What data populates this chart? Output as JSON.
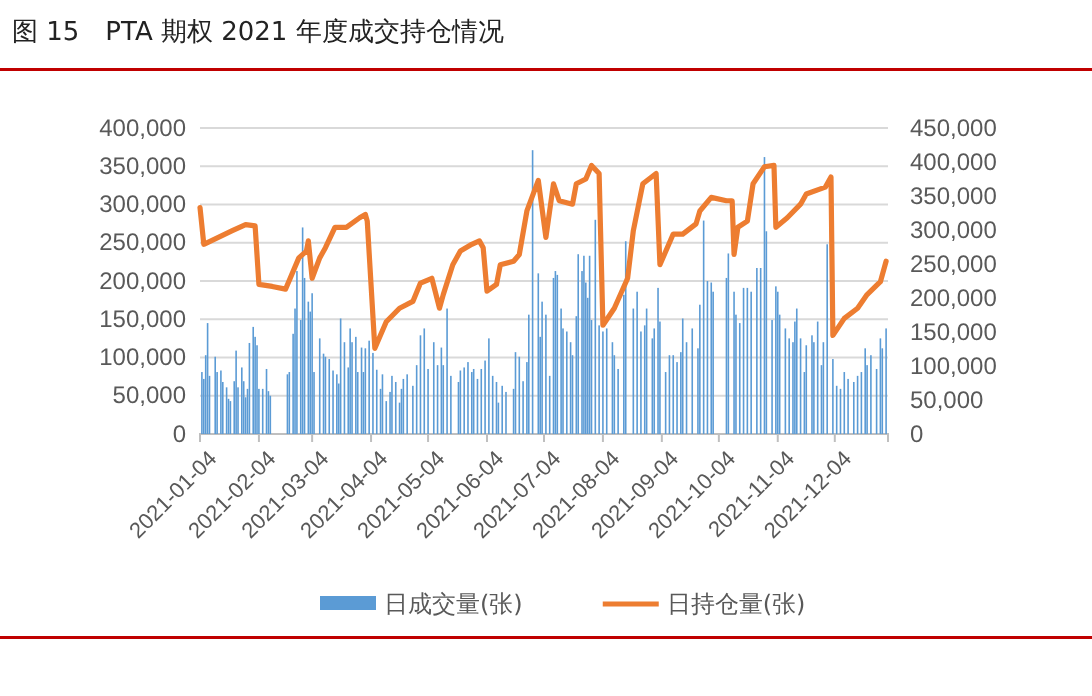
{
  "chart_data": {
    "type": "bar",
    "title": "图 15　PTA 期权 2021 年度成交持仓情况",
    "xlim": [
      "2021-01-04",
      "2022-01-01"
    ],
    "xticks": [
      "2021-01-04",
      "2021-02-04",
      "2021-03-04",
      "2021-04-04",
      "2021-05-04",
      "2021-06-04",
      "2021-07-04",
      "2021-08-04",
      "2021-09-04",
      "2021-10-04",
      "2021-11-04",
      "2021-12-04"
    ],
    "ylim": [
      0,
      400000
    ],
    "yticks": [
      {
        "value": 0,
        "label": "0"
      },
      {
        "value": 50000,
        "label": "50,000"
      },
      {
        "value": 100000,
        "label": "100,000"
      },
      {
        "value": 150000,
        "label": "150,000"
      },
      {
        "value": 200000,
        "label": "200,000"
      },
      {
        "value": 250000,
        "label": "250,000"
      },
      {
        "value": 300000,
        "label": "300,000"
      },
      {
        "value": 350000,
        "label": "350,000"
      },
      {
        "value": 400000,
        "label": "400,000"
      }
    ],
    "y2lim": [
      0,
      450000
    ],
    "y2ticks": [
      {
        "value": 0,
        "label": "0"
      },
      {
        "value": 50000,
        "label": "50,000"
      },
      {
        "value": 100000,
        "label": "100,000"
      },
      {
        "value": 150000,
        "label": "150,000"
      },
      {
        "value": 200000,
        "label": "200,000"
      },
      {
        "value": 250000,
        "label": "250,000"
      },
      {
        "value": 300000,
        "label": "300,000"
      },
      {
        "value": 350000,
        "label": "350,000"
      },
      {
        "value": 400000,
        "label": "400,000"
      },
      {
        "value": 450000,
        "label": "450,000"
      }
    ],
    "grid": "y",
    "legend": "bottom",
    "series": [
      {
        "name": "日成交量(张)",
        "color": "#5b9bd5",
        "x": [
          "2021-01-05",
          "2021-01-06",
          "2021-01-07",
          "2021-01-08",
          "2021-01-09",
          "2021-01-12",
          "2021-01-13",
          "2021-01-15",
          "2021-01-16",
          "2021-01-18",
          "2021-01-19",
          "2021-01-20",
          "2021-01-22",
          "2021-01-23",
          "2021-01-24",
          "2021-01-26",
          "2021-01-27",
          "2021-01-28",
          "2021-01-29",
          "2021-01-30",
          "2021-02-01",
          "2021-02-02",
          "2021-02-03",
          "2021-02-04",
          "2021-02-06",
          "2021-02-08",
          "2021-02-09",
          "2021-02-10",
          "2021-02-19",
          "2021-02-20",
          "2021-02-22",
          "2021-02-23",
          "2021-02-24",
          "2021-02-26",
          "2021-02-27",
          "2021-02-28",
          "2021-03-02",
          "2021-03-03",
          "2021-03-04",
          "2021-03-05",
          "2021-03-08",
          "2021-03-10",
          "2021-03-11",
          "2021-03-13",
          "2021-03-15",
          "2021-03-17",
          "2021-03-18",
          "2021-03-19",
          "2021-03-21",
          "2021-03-23",
          "2021-03-24",
          "2021-03-25",
          "2021-03-27",
          "2021-03-28",
          "2021-03-30",
          "2021-03-31",
          "2021-04-01",
          "2021-04-03",
          "2021-04-05",
          "2021-04-07",
          "2021-04-09",
          "2021-04-10",
          "2021-04-12",
          "2021-04-14",
          "2021-04-15",
          "2021-04-17",
          "2021-04-19",
          "2021-04-20",
          "2021-04-21",
          "2021-04-23",
          "2021-04-26",
          "2021-04-28",
          "2021-04-30",
          "2021-05-02",
          "2021-05-04",
          "2021-05-07",
          "2021-05-09",
          "2021-05-11",
          "2021-05-12",
          "2021-05-14",
          "2021-05-16",
          "2021-05-20",
          "2021-05-21",
          "2021-05-23",
          "2021-05-25",
          "2021-05-27",
          "2021-05-28",
          "2021-05-30",
          "2021-06-01",
          "2021-06-03",
          "2021-06-05",
          "2021-06-07",
          "2021-06-09",
          "2021-06-10",
          "2021-06-12",
          "2021-06-14",
          "2021-06-18",
          "2021-06-19",
          "2021-06-21",
          "2021-06-23",
          "2021-06-25",
          "2021-06-26",
          "2021-06-28",
          "2021-07-01",
          "2021-07-02",
          "2021-07-03",
          "2021-07-05",
          "2021-07-07",
          "2021-07-09",
          "2021-07-10",
          "2021-07-11",
          "2021-07-13",
          "2021-07-14",
          "2021-07-16",
          "2021-07-18",
          "2021-07-19",
          "2021-07-21",
          "2021-07-22",
          "2021-07-24",
          "2021-07-25",
          "2021-07-26",
          "2021-07-27",
          "2021-07-28",
          "2021-07-29",
          "2021-07-31",
          "2021-08-02",
          "2021-08-04",
          "2021-08-06",
          "2021-08-09",
          "2021-08-10",
          "2021-08-12",
          "2021-08-15",
          "2021-08-16",
          "2021-08-20",
          "2021-08-22",
          "2021-08-24",
          "2021-08-26",
          "2021-08-27",
          "2021-08-30",
          "2021-08-31",
          "2021-09-02",
          "2021-09-03",
          "2021-09-06",
          "2021-09-08",
          "2021-09-10",
          "2021-09-12",
          "2021-09-14",
          "2021-09-15",
          "2021-09-17",
          "2021-09-20",
          "2021-09-23",
          "2021-09-24",
          "2021-09-26",
          "2021-09-28",
          "2021-09-30",
          "2021-10-01",
          "2021-10-08",
          "2021-10-09",
          "2021-10-12",
          "2021-10-13",
          "2021-10-15",
          "2021-10-17",
          "2021-10-19",
          "2021-10-21",
          "2021-10-24",
          "2021-10-26",
          "2021-10-28",
          "2021-10-29",
          "2021-11-01",
          "2021-11-03",
          "2021-11-04",
          "2021-11-05",
          "2021-11-08",
          "2021-11-10",
          "2021-11-12",
          "2021-11-13",
          "2021-11-14",
          "2021-11-16",
          "2021-11-18",
          "2021-11-19",
          "2021-11-22",
          "2021-11-23",
          "2021-11-25",
          "2021-11-27",
          "2021-11-28",
          "2021-11-30",
          "2021-12-03",
          "2021-12-05",
          "2021-12-07",
          "2021-12-09",
          "2021-12-11",
          "2021-12-14",
          "2021-12-16",
          "2021-12-18",
          "2021-12-20",
          "2021-12-21",
          "2021-12-23",
          "2021-12-26",
          "2021-12-28",
          "2021-12-29",
          "2021-12-31"
        ],
        "values": [
          81000,
          72000,
          103000,
          145000,
          76000,
          101000,
          81000,
          83000,
          68000,
          61000,
          46000,
          43000,
          69000,
          109000,
          61000,
          87000,
          69000,
          48000,
          59000,
          119000,
          140000,
          127000,
          116000,
          59000,
          59000,
          85000,
          56000,
          50000,
          78000,
          81000,
          131000,
          164000,
          213000,
          149000,
          270000,
          204000,
          173000,
          160000,
          184000,
          81000,
          125000,
          105000,
          101000,
          98000,
          83000,
          78000,
          66000,
          151000,
          120000,
          87000,
          138000,
          120000,
          127000,
          81000,
          113000,
          81000,
          112000,
          122000,
          106000,
          84000,
          59000,
          78000,
          43000,
          55000,
          76000,
          68000,
          41000,
          59000,
          72000,
          78000,
          63000,
          90000,
          129000,
          138000,
          85000,
          120000,
          90000,
          113000,
          90000,
          164000,
          76000,
          68000,
          83000,
          87000,
          94000,
          81000,
          85000,
          72000,
          85000,
          96000,
          125000,
          76000,
          68000,
          41000,
          63000,
          55000,
          59000,
          107000,
          101000,
          69000,
          94000,
          156000,
          371000,
          210000,
          127000,
          173000,
          156000,
          76000,
          204000,
          213000,
          208000,
          164000,
          138000,
          134000,
          120000,
          103000,
          154000,
          235000,
          213000,
          233000,
          198000,
          178000,
          233000,
          149000,
          280000,
          142000,
          134000,
          138000,
          120000,
          103000,
          85000,
          182000,
          252000,
          164000,
          186000,
          134000,
          142000,
          164000,
          125000,
          138000,
          191000,
          147000,
          81000,
          103000,
          103000,
          94000,
          107000,
          151000,
          120000,
          138000,
          112000,
          169000,
          279000,
          200000,
          198000,
          186000,
          204000,
          236000,
          186000,
          156000,
          145000,
          191000,
          191000,
          186000,
          217000,
          217000,
          362000,
          265000,
          149000,
          193000,
          186000,
          156000,
          138000,
          125000,
          120000,
          147000,
          164000,
          125000,
          81000,
          116000,
          129000,
          120000,
          147000,
          90000,
          120000,
          248000,
          98000,
          63000,
          59000,
          81000,
          72000,
          68000,
          76000,
          81000,
          112000,
          90000,
          103000,
          85000,
          125000,
          112000,
          138000
        ]
      },
      {
        "name": "日持仓量(张)",
        "type": "line",
        "axis": "y2",
        "color": "#ed7d31",
        "x": [
          "2021-01-04",
          "2021-01-06",
          "2021-01-21",
          "2021-01-28",
          "2021-02-02",
          "2021-02-04",
          "2021-02-11",
          "2021-02-18",
          "2021-02-25",
          "2021-03-01",
          "2021-03-02",
          "2021-03-04",
          "2021-03-08",
          "2021-03-11",
          "2021-03-16",
          "2021-03-22",
          "2021-03-29",
          "2021-04-01",
          "2021-04-02",
          "2021-04-06",
          "2021-04-12",
          "2021-04-19",
          "2021-04-26",
          "2021-04-30",
          "2021-05-06",
          "2021-05-10",
          "2021-05-12",
          "2021-05-17",
          "2021-05-21",
          "2021-05-27",
          "2021-05-31",
          "2021-06-02",
          "2021-06-04",
          "2021-06-09",
          "2021-06-11",
          "2021-06-18",
          "2021-06-21",
          "2021-06-25",
          "2021-07-01",
          "2021-07-05",
          "2021-07-09",
          "2021-07-12",
          "2021-07-19",
          "2021-07-21",
          "2021-07-26",
          "2021-07-29",
          "2021-08-02",
          "2021-08-04",
          "2021-08-10",
          "2021-08-17",
          "2021-08-20",
          "2021-08-25",
          "2021-09-01",
          "2021-09-03",
          "2021-09-10",
          "2021-09-15",
          "2021-09-22",
          "2021-09-24",
          "2021-09-30",
          "2021-10-08",
          "2021-10-11",
          "2021-10-12",
          "2021-10-14",
          "2021-10-19",
          "2021-10-22",
          "2021-10-28",
          "2021-11-02",
          "2021-11-03",
          "2021-11-09",
          "2021-11-16",
          "2021-11-19",
          "2021-11-29",
          "2021-12-02",
          "2021-12-03",
          "2021-12-09",
          "2021-12-16",
          "2021-12-21",
          "2021-12-28",
          "2021-12-31"
        ],
        "values": [
          333000,
          279000,
          299000,
          308000,
          306000,
          220000,
          217000,
          213000,
          259000,
          269000,
          284000,
          229000,
          259000,
          274000,
          304000,
          304000,
          318000,
          323000,
          313000,
          126000,
          165000,
          185000,
          195000,
          222000,
          229000,
          185000,
          205000,
          249000,
          269000,
          279000,
          284000,
          274000,
          210000,
          220000,
          249000,
          254000,
          264000,
          328000,
          373000,
          289000,
          368000,
          343000,
          338000,
          368000,
          375000,
          395000,
          383000,
          160000,
          185000,
          229000,
          299000,
          368000,
          383000,
          249000,
          294000,
          294000,
          309000,
          328000,
          348000,
          343000,
          343000,
          264000,
          304000,
          313000,
          368000,
          393000,
          395000,
          304000,
          318000,
          338000,
          353000,
          363000,
          378000,
          145000,
          170000,
          185000,
          205000,
          224000,
          254000
        ]
      }
    ]
  }
}
